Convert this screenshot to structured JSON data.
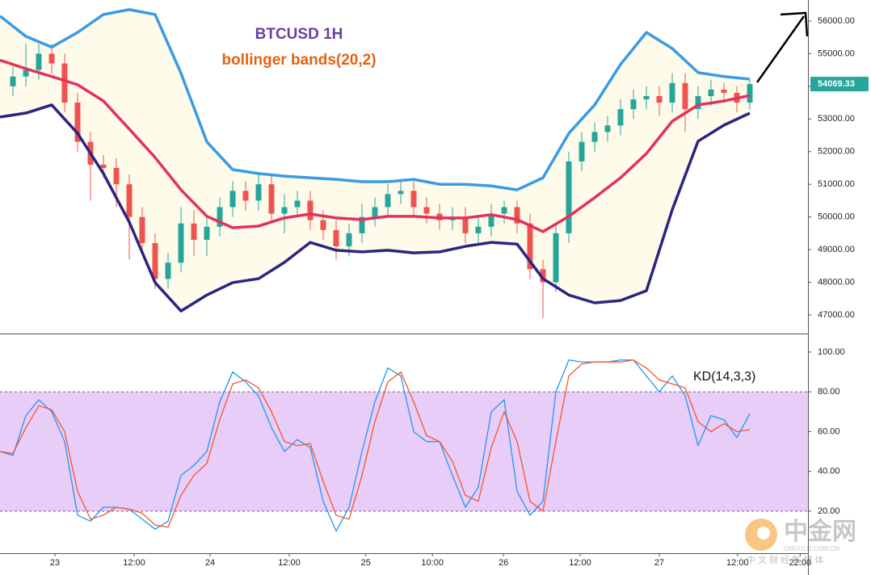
{
  "chart_data": [
    {
      "type": "candlestick",
      "title": "BTCUSD 1H",
      "subtitle": "bollinger bands(20,2)",
      "x": [
        2,
        4,
        6,
        8,
        10,
        12,
        14,
        16,
        18,
        20,
        22,
        24,
        26,
        28,
        30,
        32,
        34,
        36,
        38,
        40,
        42,
        44,
        46,
        48,
        50,
        52,
        54,
        56,
        58,
        60,
        62,
        64,
        66,
        68,
        70,
        72,
        74,
        76,
        78,
        80,
        82,
        84,
        86,
        88,
        90,
        92,
        94,
        96,
        98,
        100,
        102,
        104,
        106,
        108,
        110,
        112,
        114,
        116
      ],
      "open": [
        54000,
        54300,
        54500,
        55000,
        54700,
        53500,
        52300,
        51600,
        51500,
        51000,
        50000,
        49200,
        48100,
        48600,
        49800,
        49300,
        49700,
        50300,
        50800,
        50500,
        51000,
        50100,
        50300,
        50500,
        49900,
        49600,
        49100,
        49500,
        50000,
        50300,
        50700,
        50800,
        50300,
        50100,
        49900,
        50000,
        49500,
        49700,
        50100,
        50300,
        49800,
        48400,
        48000,
        49500,
        51700,
        52300,
        52600,
        52800,
        53300,
        53600,
        53700,
        53500,
        54100,
        53300,
        53700,
        53900,
        53800,
        53500
      ],
      "high": [
        54600,
        55300,
        55300,
        55300,
        55000,
        53800,
        52600,
        51900,
        51800,
        51300,
        50300,
        49500,
        48900,
        50300,
        50200,
        50000,
        50600,
        51100,
        51100,
        51300,
        51300,
        50700,
        50800,
        50800,
        50200,
        49900,
        49800,
        50400,
        50600,
        51000,
        51100,
        51100,
        50600,
        50400,
        50300,
        50300,
        50000,
        50400,
        50500,
        50500,
        50100,
        48700,
        49800,
        52000,
        52600,
        52900,
        53100,
        53600,
        53900,
        54000,
        54000,
        54400,
        54400,
        54000,
        54200,
        54100,
        54000,
        54200
      ],
      "low": [
        53700,
        54000,
        54200,
        54400,
        53200,
        52000,
        50500,
        51200,
        50300,
        48700,
        48900,
        47800,
        47800,
        48300,
        48800,
        48800,
        49400,
        50000,
        50200,
        50200,
        49800,
        49500,
        50000,
        49600,
        49300,
        48700,
        48800,
        49200,
        49700,
        50000,
        50400,
        50000,
        49800,
        49600,
        49600,
        49200,
        49200,
        49400,
        49800,
        49500,
        48100,
        46900,
        47700,
        49200,
        51400,
        52000,
        52300,
        52500,
        53000,
        53300,
        53100,
        53200,
        52600,
        53000,
        53400,
        53500,
        53200,
        53300
      ],
      "close": [
        54300,
        54500,
        55000,
        54700,
        53500,
        52300,
        51600,
        51500,
        51000,
        50000,
        49200,
        48100,
        48600,
        49800,
        49300,
        49700,
        50300,
        50800,
        50500,
        51000,
        50100,
        50300,
        50500,
        49900,
        49600,
        49100,
        49500,
        50000,
        50300,
        50700,
        50800,
        50300,
        50100,
        49900,
        50000,
        49500,
        49700,
        50100,
        50300,
        49800,
        48400,
        48000,
        49500,
        51700,
        52300,
        52600,
        52800,
        53300,
        53600,
        53700,
        53500,
        54100,
        53300,
        53700,
        53900,
        53800,
        53500,
        54069.33
      ],
      "up_color": "#26a69a",
      "down_color": "#ef5350",
      "bands": {
        "x": [
          0,
          4,
          8,
          12,
          16,
          20,
          24,
          28,
          32,
          36,
          40,
          44,
          48,
          52,
          56,
          60,
          64,
          68,
          72,
          76,
          80,
          84,
          88,
          92,
          96,
          100,
          104,
          108,
          112,
          116
        ],
        "fill": "#fffbea",
        "series": [
          {
            "color": "#3a9be3",
            "values": [
              56150,
              55530,
              55200,
              55650,
              56200,
              56350,
              56200,
              54400,
              52300,
              51450,
              51330,
              51250,
              51200,
              51150,
              51080,
              51080,
              51150,
              51000,
              51000,
              50950,
              50830,
              51200,
              52560,
              53430,
              54670,
              55650,
              55160,
              54420,
              54300,
              54220
            ]
          },
          {
            "color": "#e2315f",
            "values": [
              54800,
              54540,
              54300,
              54050,
              53550,
              52690,
              51820,
              50830,
              50020,
              49670,
              49720,
              49970,
              50090,
              49970,
              49920,
              50020,
              50020,
              49970,
              49970,
              50070,
              49920,
              49550,
              50020,
              50590,
              51200,
              51940,
              52930,
              53430,
              53550,
              53720
            ]
          },
          {
            "color": "#2b2482",
            "values": [
              53060,
              53180,
              53430,
              52560,
              51330,
              49840,
              47990,
              47120,
              47610,
              47990,
              48110,
              48610,
              49220,
              48980,
              48930,
              48980,
              48900,
              48930,
              49100,
              49220,
              49170,
              48110,
              47610,
              47370,
              47440,
              47740,
              50220,
              52320,
              52810,
              53180
            ]
          }
        ]
      },
      "xlim": [
        0,
        125
      ],
      "ylim": [
        46430,
        56643
      ],
      "yticks": [
        {
          "value": 47000,
          "label": "47000.00"
        },
        {
          "value": 48000,
          "label": "48000.00"
        },
        {
          "value": 49000,
          "label": "49000.00"
        },
        {
          "value": 50000,
          "label": "50000.00"
        },
        {
          "value": 51000,
          "label": "51000.00"
        },
        {
          "value": 52000,
          "label": "52000.00"
        },
        {
          "value": 53000,
          "label": "53000.00"
        },
        {
          "value": 54000,
          "label": "54000.00"
        },
        {
          "value": 55000,
          "label": "55000.00"
        },
        {
          "value": 56000,
          "label": "56000.00"
        }
      ],
      "xticks": [
        {
          "value": 8.5,
          "label": "23"
        },
        {
          "value": 20.75,
          "label": "12:00"
        },
        {
          "value": 32.5,
          "label": "24"
        },
        {
          "value": 44.75,
          "label": "12:00"
        },
        {
          "value": 56.6,
          "label": "25"
        },
        {
          "value": 66.9,
          "label": "10:00"
        },
        {
          "value": 77.9,
          "label": "26"
        },
        {
          "value": 89.75,
          "label": "12:00"
        },
        {
          "value": 102,
          "label": "27"
        },
        {
          "value": 114.1,
          "label": "12:00"
        },
        {
          "value": 123.8,
          "label": "22:00"
        }
      ]
    },
    {
      "type": "line",
      "title": "KD(14,3,3)",
      "x": [
        0,
        2,
        4,
        6,
        8,
        10,
        12,
        14,
        16,
        18,
        20,
        22,
        24,
        26,
        28,
        30,
        32,
        34,
        36,
        38,
        40,
        42,
        44,
        46,
        48,
        50,
        52,
        54,
        56,
        58,
        60,
        62,
        64,
        66,
        68,
        70,
        72,
        74,
        76,
        78,
        80,
        82,
        84,
        86,
        88,
        90,
        92,
        94,
        96,
        98,
        100,
        102,
        104,
        106,
        108,
        110,
        112,
        114,
        116
      ],
      "series": [
        {
          "color": "#2196f3",
          "values": [
            50,
            48,
            68,
            76,
            70,
            55,
            18,
            15,
            22,
            22,
            21,
            16,
            11,
            15,
            38,
            43,
            50,
            75,
            90,
            85,
            78,
            62,
            50,
            56,
            52,
            25,
            10,
            22,
            50,
            75,
            92,
            88,
            60,
            55,
            55,
            38,
            22,
            32,
            70,
            76,
            30,
            18,
            25,
            80,
            96,
            95,
            95,
            95,
            96,
            96,
            88,
            80,
            88,
            78,
            53,
            68,
            66,
            57,
            69
          ]
        },
        {
          "color": "#f4562c",
          "values": [
            50,
            49,
            62,
            73,
            71,
            60,
            30,
            16,
            18,
            22,
            21,
            19,
            13,
            12,
            28,
            38,
            44,
            66,
            84,
            86,
            82,
            70,
            55,
            53,
            54,
            35,
            18,
            16,
            38,
            65,
            85,
            90,
            75,
            58,
            55,
            45,
            28,
            25,
            52,
            70,
            55,
            25,
            20,
            55,
            88,
            94,
            95,
            95,
            95,
            96,
            92,
            86,
            84,
            82,
            65,
            60,
            64,
            60,
            61
          ]
        }
      ],
      "band": [
        20,
        80
      ],
      "band_color": "#e8cdf8",
      "xlim": [
        0,
        125
      ],
      "ylim": [
        -1.1,
        108.9
      ],
      "yticks": [
        {
          "value": 20,
          "label": "20.00"
        },
        {
          "value": 40,
          "label": "40.00"
        },
        {
          "value": 60,
          "label": "60.00"
        },
        {
          "value": 80,
          "label": "80.00"
        },
        {
          "value": 100,
          "label": "100.00"
        }
      ]
    }
  ],
  "watermark": {
    "name": "中金网",
    "domain": "CNGOLD.COM.CN",
    "slogan": "中 文 财 经 新 媒 体"
  }
}
